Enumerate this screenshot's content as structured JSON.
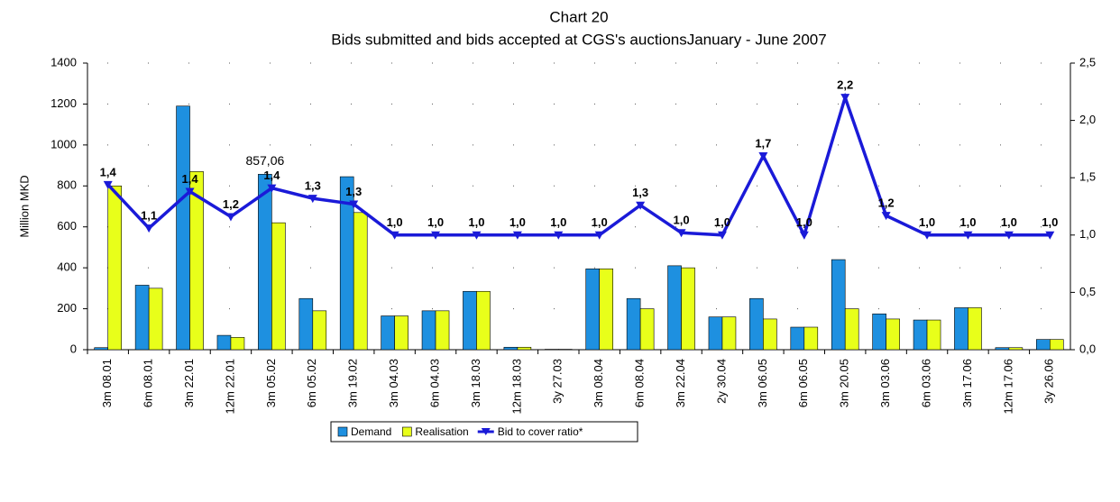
{
  "chart_data": {
    "type": "bar_line",
    "title": "Chart 20",
    "subtitle": "Bids submitted and bids accepted at CGS's auctionsJanuary - June 2007",
    "y_label": "Million MKD",
    "categories": [
      "3m 08.01",
      "6m 08.01",
      "3m 22.01",
      "12m 22.01",
      "3m 05.02",
      "6m 05.02",
      "3m 19.02",
      "3m 04.03",
      "6m 04.03",
      "3m 18.03",
      "12m 18.03",
      "3y 27.03",
      "3m 08.04",
      "6m 08.04",
      "3m 22.04",
      "2y 30.04",
      "3m 06.05",
      "6m 06.05",
      "3m 20.05",
      "3m 03.06",
      "6m 03.06",
      "3m 17.06",
      "12m 17.06",
      "3y 26.06"
    ],
    "series": [
      {
        "name": "Demand",
        "color": "#1e90e0",
        "type": "bar",
        "values": [
          10,
          315,
          1190,
          70,
          857.06,
          250,
          845,
          165,
          190,
          285,
          12,
          2,
          395,
          250,
          410,
          160,
          250,
          110,
          440,
          175,
          145,
          205,
          10,
          50
        ],
        "value_labels": [
          null,
          null,
          null,
          null,
          "857,06",
          null,
          null,
          null,
          null,
          null,
          null,
          null,
          null,
          null,
          null,
          null,
          null,
          null,
          null,
          null,
          null,
          null,
          null,
          null
        ]
      },
      {
        "name": "Realisation",
        "color": "#e8ff1a",
        "type": "bar",
        "values": [
          800,
          300,
          870,
          60,
          620,
          190,
          670,
          165,
          190,
          285,
          12,
          2,
          395,
          200,
          400,
          160,
          150,
          110,
          200,
          150,
          145,
          205,
          10,
          50
        ]
      },
      {
        "name": "Bid to cover ratio*",
        "color": "#1a1ad8",
        "type": "line",
        "axis": "y2",
        "values": [
          1.44,
          1.06,
          1.38,
          1.16,
          1.41,
          1.32,
          1.27,
          1.0,
          1.0,
          1.0,
          1.0,
          1.0,
          1.0,
          1.26,
          1.02,
          1.0,
          1.69,
          1.0,
          2.2,
          1.17,
          1.0,
          1.0,
          1.0,
          1.0
        ],
        "value_labels": [
          "1,4",
          "1,1",
          "1,4",
          "1,2",
          "1,4",
          "1,3",
          "1,3",
          "1,0",
          "1,0",
          "1,0",
          "1,0",
          "1,0",
          "1,0",
          "1,3",
          "1,0",
          "1,0",
          "1,7",
          "1,0",
          "2,2",
          "1,2",
          "1,0",
          "1,0",
          "1,0",
          "1,0"
        ]
      }
    ],
    "ylim": [
      0,
      1400
    ],
    "yticks": [
      0,
      200,
      400,
      600,
      800,
      1000,
      1200,
      1400
    ],
    "y2lim": [
      0,
      2.5
    ],
    "y2ticks": [
      {
        "value": 0,
        "label": "0,0"
      },
      {
        "value": 0.5,
        "label": "0,5"
      },
      {
        "value": 1,
        "label": "1,0"
      },
      {
        "value": 1.5,
        "label": "1,5"
      },
      {
        "value": 2,
        "label": "2,0"
      },
      {
        "value": 2.5,
        "label": "2,5"
      }
    ],
    "grid": true,
    "legend": "bottom"
  }
}
